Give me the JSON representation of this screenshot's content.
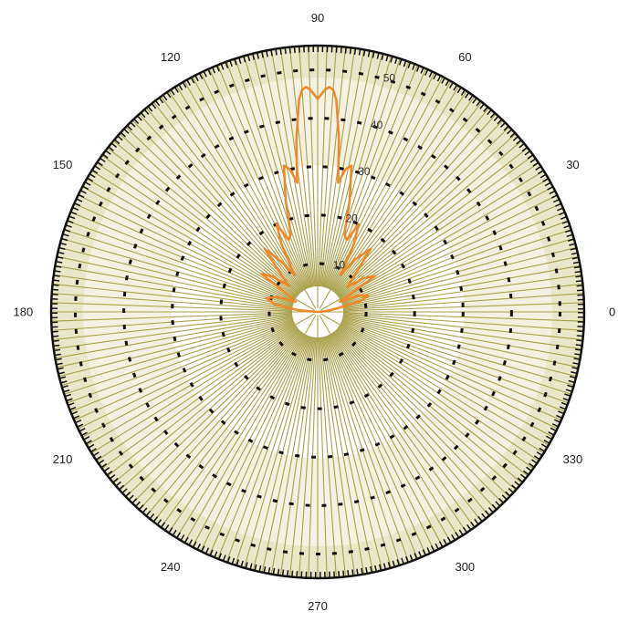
{
  "chart_data": {
    "type": "line",
    "projection": "polar",
    "angular_tick_labels": [
      "0",
      "30",
      "60",
      "90",
      "120",
      "150",
      "180",
      "210",
      "240",
      "270",
      "300",
      "330"
    ],
    "radial_tick_labels": [
      "10",
      "20",
      "30",
      "40",
      "50"
    ],
    "rlim": [
      0,
      55
    ],
    "theta_unit": "degrees",
    "grid": true,
    "legend": "none",
    "series": [
      {
        "color": "#ef8a2c",
        "theta": [
          0,
          5,
          10,
          14,
          18,
          22,
          25,
          28,
          32,
          36,
          40,
          45,
          50,
          55,
          58,
          62,
          65,
          68,
          71,
          74,
          77,
          79,
          81,
          83,
          85,
          86,
          87,
          88,
          89,
          90,
          91,
          92,
          93,
          94,
          95,
          97,
          99,
          101,
          103,
          106,
          109,
          112,
          115,
          118,
          122,
          126,
          130,
          134,
          138,
          142,
          146,
          150,
          155,
          160,
          165,
          170,
          175,
          180
        ],
        "r": [
          0,
          1.5,
          4,
          9,
          11,
          9,
          5,
          7,
          14,
          12,
          8,
          11,
          17,
          13,
          9,
          16,
          20,
          16,
          17,
          24,
          31,
          30,
          27,
          36,
          44,
          46,
          46.5,
          46,
          45,
          44,
          45,
          46,
          46.5,
          46,
          44,
          36,
          27,
          30,
          31,
          24,
          17,
          16,
          20,
          16,
          9,
          13,
          17,
          11,
          8,
          12,
          14,
          7,
          5,
          9,
          11,
          9,
          4,
          0
        ]
      }
    ]
  },
  "style": {
    "background": "#ffffff",
    "axis_ring_color": "#111111",
    "radial_spoke_color": "#a8a04a",
    "outer_band_color": "#e9e7c9",
    "inner_band_color": "#f3f2e2",
    "grid_ring_color": "#111111",
    "series_color": "#ef8a2c"
  }
}
